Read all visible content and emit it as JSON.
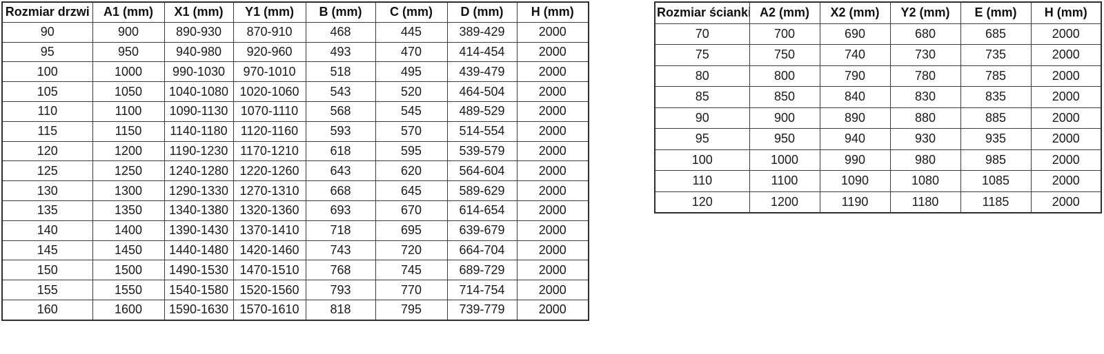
{
  "colors": {
    "background": "#ffffff",
    "border": "#3a3a3a",
    "text": "#1a1a1a"
  },
  "tables": [
    {
      "title": "Rozmiar drzwi",
      "headers": [
        "Rozmiar drzwi",
        "A1 (mm)",
        "X1 (mm)",
        "Y1 (mm)",
        "B (mm)",
        "C (mm)",
        "D (mm)",
        "H (mm)"
      ],
      "rows": [
        [
          "90",
          "900",
          "890-930",
          "870-910",
          "468",
          "445",
          "389-429",
          "2000"
        ],
        [
          "95",
          "950",
          "940-980",
          "920-960",
          "493",
          "470",
          "414-454",
          "2000"
        ],
        [
          "100",
          "1000",
          "990-1030",
          "970-1010",
          "518",
          "495",
          "439-479",
          "2000"
        ],
        [
          "105",
          "1050",
          "1040-1080",
          "1020-1060",
          "543",
          "520",
          "464-504",
          "2000"
        ],
        [
          "110",
          "1100",
          "1090-1130",
          "1070-1110",
          "568",
          "545",
          "489-529",
          "2000"
        ],
        [
          "115",
          "1150",
          "1140-1180",
          "1120-1160",
          "593",
          "570",
          "514-554",
          "2000"
        ],
        [
          "120",
          "1200",
          "1190-1230",
          "1170-1210",
          "618",
          "595",
          "539-579",
          "2000"
        ],
        [
          "125",
          "1250",
          "1240-1280",
          "1220-1260",
          "643",
          "620",
          "564-604",
          "2000"
        ],
        [
          "130",
          "1300",
          "1290-1330",
          "1270-1310",
          "668",
          "645",
          "589-629",
          "2000"
        ],
        [
          "135",
          "1350",
          "1340-1380",
          "1320-1360",
          "693",
          "670",
          "614-654",
          "2000"
        ],
        [
          "140",
          "1400",
          "1390-1430",
          "1370-1410",
          "718",
          "695",
          "639-679",
          "2000"
        ],
        [
          "145",
          "1450",
          "1440-1480",
          "1420-1460",
          "743",
          "720",
          "664-704",
          "2000"
        ],
        [
          "150",
          "1500",
          "1490-1530",
          "1470-1510",
          "768",
          "745",
          "689-729",
          "2000"
        ],
        [
          "155",
          "1550",
          "1540-1580",
          "1520-1560",
          "793",
          "770",
          "714-754",
          "2000"
        ],
        [
          "160",
          "1600",
          "1590-1630",
          "1570-1610",
          "818",
          "795",
          "739-779",
          "2000"
        ]
      ]
    },
    {
      "title": "Rozmiar ścianki",
      "headers": [
        "Rozmiar ścianki",
        "A2 (mm)",
        "X2 (mm)",
        "Y2 (mm)",
        "E (mm)",
        "H (mm)"
      ],
      "rows": [
        [
          "70",
          "700",
          "690",
          "680",
          "685",
          "2000"
        ],
        [
          "75",
          "750",
          "740",
          "730",
          "735",
          "2000"
        ],
        [
          "80",
          "800",
          "790",
          "780",
          "785",
          "2000"
        ],
        [
          "85",
          "850",
          "840",
          "830",
          "835",
          "2000"
        ],
        [
          "90",
          "900",
          "890",
          "880",
          "885",
          "2000"
        ],
        [
          "95",
          "950",
          "940",
          "930",
          "935",
          "2000"
        ],
        [
          "100",
          "1000",
          "990",
          "980",
          "985",
          "2000"
        ],
        [
          "110",
          "1100",
          "1090",
          "1080",
          "1085",
          "2000"
        ],
        [
          "120",
          "1200",
          "1190",
          "1180",
          "1185",
          "2000"
        ]
      ]
    }
  ]
}
